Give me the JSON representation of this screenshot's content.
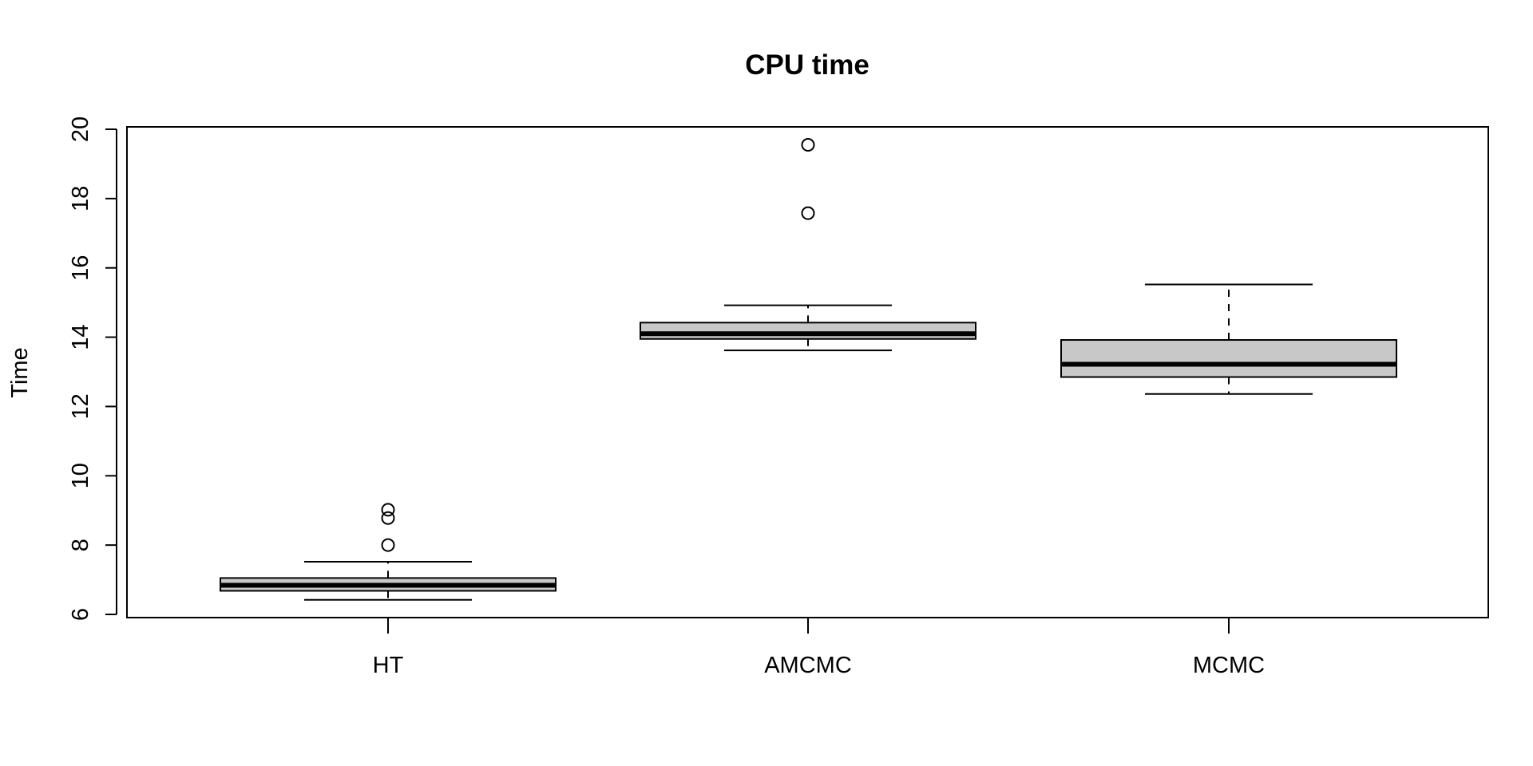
{
  "chart_data": {
    "type": "box",
    "title": "CPU time",
    "xlabel": "",
    "ylabel": "Time",
    "ylim": [
      6,
      20
    ],
    "yticks": [
      6,
      8,
      10,
      12,
      14,
      16,
      18,
      20
    ],
    "categories": [
      "HT",
      "AMCMC",
      "MCMC"
    ],
    "boxes": [
      {
        "category": "HT",
        "whisker_low": 6.42,
        "q1": 6.68,
        "median": 6.84,
        "q3": 7.05,
        "whisker_high": 7.52,
        "outliers": [
          8.0,
          8.78,
          9.02
        ]
      },
      {
        "category": "AMCMC",
        "whisker_low": 13.62,
        "q1": 13.95,
        "median": 14.1,
        "q3": 14.42,
        "whisker_high": 14.92,
        "outliers": [
          17.58,
          19.55
        ]
      },
      {
        "category": "MCMC",
        "whisker_low": 12.36,
        "q1": 12.85,
        "median": 13.22,
        "q3": 13.92,
        "whisker_high": 15.52,
        "outliers": []
      }
    ],
    "box_fill": "#c8c8c8",
    "grid": false,
    "legend": "none"
  }
}
